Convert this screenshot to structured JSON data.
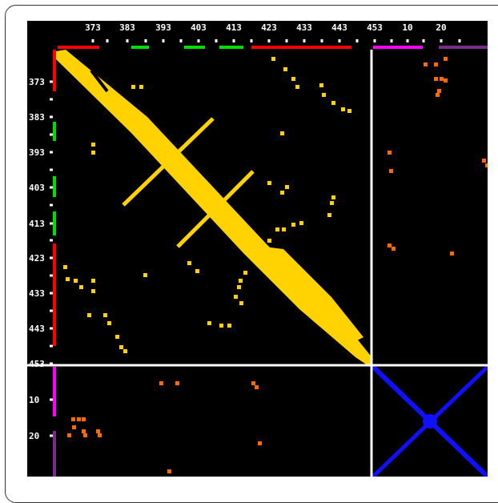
{
  "contact_map": {
    "x_tick_labels": [
      "373",
      "383",
      "393",
      "403",
      "413",
      "423",
      "433",
      "443",
      "453",
      "10",
      "20"
    ],
    "y_tick_labels": [
      "373",
      "383",
      "393",
      "403",
      "413",
      "423",
      "433",
      "443",
      "453",
      "10",
      "20"
    ],
    "colors": {
      "background": "#000000",
      "intra_chain_a": "#ffd200",
      "inter_chain": "#ff6a00",
      "intra_chain_b": "#1010ff",
      "divider": "#ffffff",
      "helix_segment": "#ff0000",
      "strand_segment": "#00dd00",
      "chain_b_segment_1": "#ff00ff",
      "chain_b_segment_2": "#7a2a8a"
    }
  }
}
